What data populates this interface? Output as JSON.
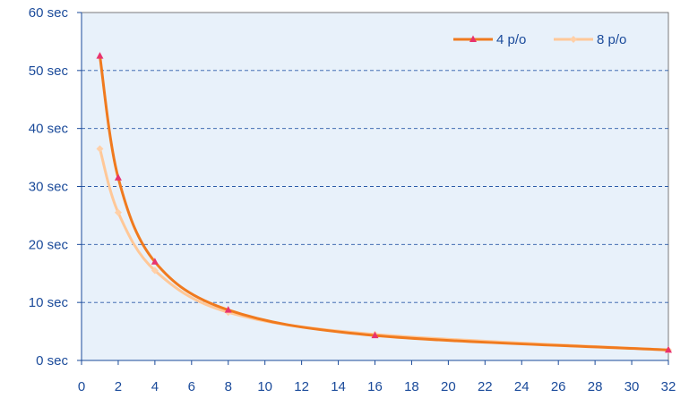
{
  "chart_data": {
    "type": "line",
    "title": "",
    "xlabel": "",
    "ylabel": "",
    "xlim": [
      0,
      32
    ],
    "ylim": [
      0,
      60
    ],
    "x_ticks": [
      "0",
      "2",
      "4",
      "6",
      "8",
      "10",
      "12",
      "14",
      "16",
      "18",
      "20",
      "22",
      "24",
      "26",
      "28",
      "30",
      "32"
    ],
    "y_ticks": [
      "0 sec",
      "10 sec",
      "20 sec",
      "30 sec",
      "40 sec",
      "50 sec",
      "60 sec"
    ],
    "grid": "horizontal dashed",
    "legend_position": "top-right",
    "plot_background": "#e8f1fa",
    "series": [
      {
        "name": "4 p/o",
        "color": "#f07a1e",
        "marker_color": "#e8336e",
        "marker": "triangle",
        "x": [
          1,
          2,
          4,
          8,
          16,
          32
        ],
        "y": [
          52.5,
          31.5,
          17.0,
          8.7,
          4.3,
          1.8
        ]
      },
      {
        "name": "8 p/o",
        "color": "#ffc898",
        "marker_color": "#ffd0a8",
        "marker": "diamond",
        "x": [
          1,
          2,
          4,
          8,
          16,
          32
        ],
        "y": [
          36.5,
          25.5,
          15.5,
          8.3,
          4.5,
          1.8
        ]
      }
    ]
  }
}
